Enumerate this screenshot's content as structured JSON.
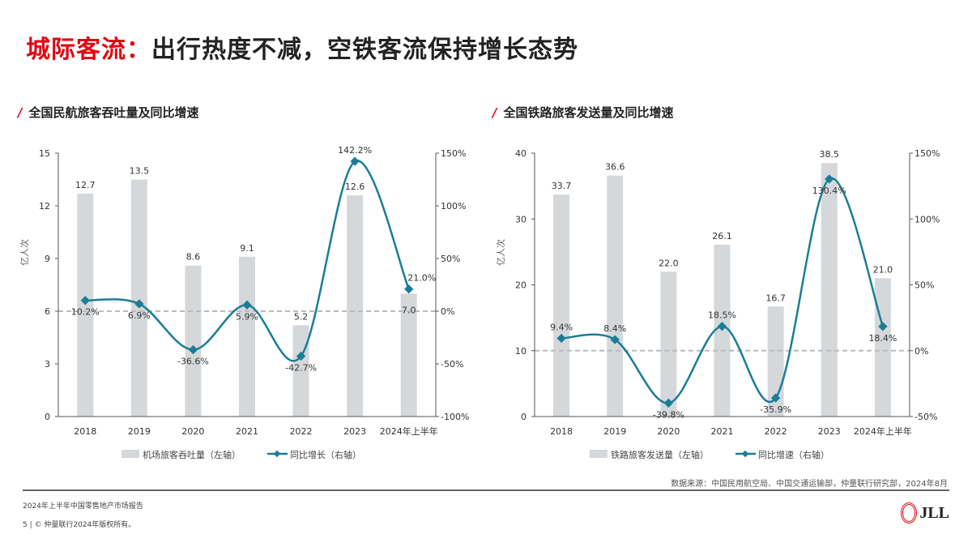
{
  "title": {
    "highlight": "城际客流：",
    "rest": "出行热度不减，空铁客流保持增长态势"
  },
  "chart_data": [
    {
      "type": "bar+line",
      "title": "全国民航旅客吞吐量及同比增速",
      "ylabel": "亿人次",
      "categories": [
        "2018",
        "2019",
        "2020",
        "2021",
        "2022",
        "2023",
        "2024年上半年"
      ],
      "ylim": [
        0,
        15
      ],
      "yticks": [
        0,
        3,
        6,
        9,
        12,
        15
      ],
      "y2lim": [
        -100,
        150
      ],
      "y2ticks": [
        "-100%",
        "-50%",
        "0%",
        "50%",
        "100%",
        "150%"
      ],
      "series": [
        {
          "name": "机场旅客吞吐量（左轴）",
          "axis": "left",
          "type": "bar",
          "values": [
            12.7,
            13.5,
            8.6,
            9.1,
            5.2,
            12.6,
            7.0
          ],
          "labels": [
            "12.7",
            "13.5",
            "8.6",
            "9.1",
            "5.2",
            "12.6",
            "7.0"
          ]
        },
        {
          "name": "同比增长（右轴）",
          "axis": "right",
          "type": "line",
          "values": [
            10.2,
            6.9,
            -36.6,
            5.9,
            -42.7,
            142.2,
            21.0
          ],
          "labels": [
            "10.2%",
            "6.9%",
            "-36.6%",
            "5.9%",
            "-42.7%",
            "142.2%",
            "21.0%"
          ]
        }
      ],
      "grid": false,
      "legend": "bottom"
    },
    {
      "type": "bar+line",
      "title": "全国铁路旅客发送量及同比增速",
      "ylabel": "亿人次",
      "categories": [
        "2018",
        "2019",
        "2020",
        "2021",
        "2022",
        "2023",
        "2024年上半年"
      ],
      "ylim": [
        0,
        40
      ],
      "yticks": [
        0,
        10,
        20,
        30,
        40
      ],
      "y2lim": [
        -50,
        150
      ],
      "y2ticks": [
        "-50%",
        "0%",
        "50%",
        "100%",
        "150%"
      ],
      "series": [
        {
          "name": "铁路旅客发送量（左轴）",
          "axis": "left",
          "type": "bar",
          "values": [
            33.7,
            36.6,
            22.0,
            26.1,
            16.7,
            38.5,
            21.0
          ],
          "labels": [
            "33.7",
            "36.6",
            "22.0",
            "26.1",
            "16.7",
            "38.5",
            "21.0"
          ]
        },
        {
          "name": "同比增速（右轴）",
          "axis": "right",
          "type": "line",
          "values": [
            9.4,
            8.4,
            -39.8,
            18.5,
            -35.9,
            130.4,
            18.4
          ],
          "labels": [
            "9.4%",
            "8.4%",
            "-39.8%",
            "18.5%",
            "-35.9%",
            "130.4%",
            "18.4%"
          ]
        }
      ],
      "grid": false,
      "legend": "bottom"
    }
  ],
  "colors": {
    "bar": "#d5d8da",
    "line": "#1a7d98",
    "accent": "#e30613",
    "zero": "#bbbbbb"
  },
  "footer": {
    "source": "数据来源：中国民用航空局、中国交通运输部，仲量联行研究部，2024年8月",
    "report": "2024年上半年中国零售地产市场报告",
    "copyright": "5 | © 仲量联行2024年版权所有。",
    "logo": "JLL"
  }
}
